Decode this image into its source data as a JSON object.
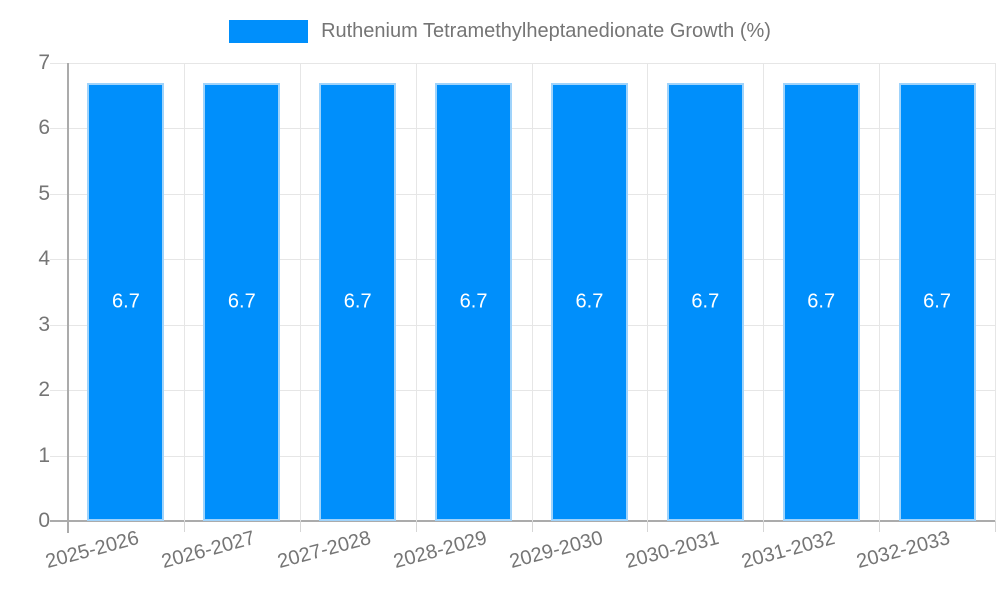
{
  "legend": {
    "label": "Ruthenium Tetramethylheptanedionate Growth (%)"
  },
  "colors": {
    "background": "#ffffff",
    "bar": "#008ffb",
    "bar_border": "#9fd3fb",
    "bar_label": "#ffffff",
    "grid": "#e6e6e6",
    "axis": "#ababab",
    "text": "#757575"
  },
  "chart_data": {
    "type": "bar",
    "title": "Ruthenium Tetramethylheptanedionate Growth (%)",
    "categories": [
      "2025-2026",
      "2026-2027",
      "2027-2028",
      "2028-2029",
      "2029-2030",
      "2030-2031",
      "2031-2032",
      "2032-2033"
    ],
    "values": [
      6.7,
      6.7,
      6.7,
      6.7,
      6.7,
      6.7,
      6.7,
      6.7
    ],
    "bar_labels": [
      "6.7",
      "6.7",
      "6.7",
      "6.7",
      "6.7",
      "6.7",
      "6.7",
      "6.7"
    ],
    "xlabel": "",
    "ylabel": "",
    "ylim": [
      0,
      7
    ],
    "yticks": [
      0,
      1,
      2,
      3,
      4,
      5,
      6,
      7
    ],
    "grid": true,
    "legend_position": "top-center"
  }
}
